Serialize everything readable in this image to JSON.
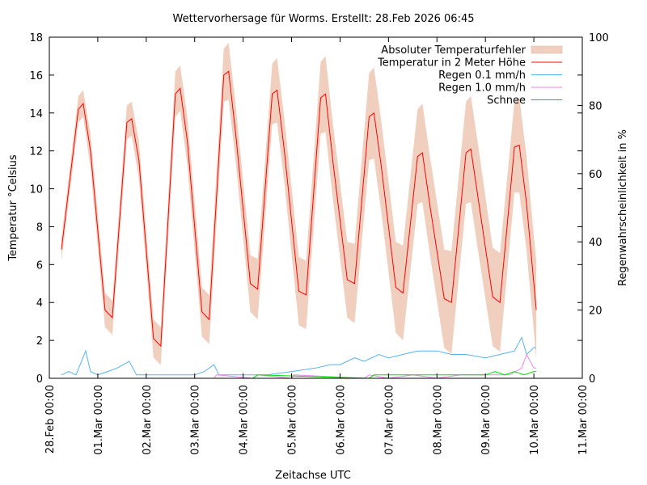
{
  "chart_data": {
    "type": "line",
    "title": "Wettervorhersage für Worms. Erstellt: 28.Feb 2026 06:45",
    "xlabel": "Zeitachse UTC",
    "ylabel": "Temperatur °Celsius",
    "y2label": "Regenwahrscheinlichkeit in %",
    "xlim_days": [
      0,
      11
    ],
    "ylim": [
      0,
      18
    ],
    "y2lim": [
      0,
      100
    ],
    "x_ticks": [
      "28.Feb 00:00",
      "01.Mar 00:00",
      "02.Mar 00:00",
      "03.Mar 00:00",
      "04.Mar 00:00",
      "05.Mar 00:00",
      "06.Mar 00:00",
      "07.Mar 00:00",
      "08.Mar 00:00",
      "09.Mar 00:00",
      "10.Mar 00:00",
      "11.Mar 00:00"
    ],
    "y_ticks": [
      "0",
      "2",
      "4",
      "6",
      "8",
      "10",
      "12",
      "14",
      "16",
      "18"
    ],
    "y2_ticks": [
      "0",
      "20",
      "40",
      "60",
      "80",
      "100"
    ],
    "legend_position": "top-right",
    "legend": [
      {
        "label": "Absoluter Temperaturfehler",
        "color": "#f0cfbf",
        "kind": "band"
      },
      {
        "label": "Temperatur in 2 Meter Höhe",
        "color": "#ff0000",
        "kind": "line"
      },
      {
        "label": "Regen 0.1 mm/h",
        "color": "#56b4e9",
        "kind": "line"
      },
      {
        "label": "Regen 1.0 mm/h",
        "color": "#ee82ee",
        "kind": "line"
      },
      {
        "label": "Schnee",
        "color": "#00dd00",
        "kind": "line"
      }
    ],
    "temperature_keypoints": {
      "x_days": [
        0.25,
        0.6,
        0.7,
        0.85,
        1.15,
        1.3,
        1.6,
        1.7,
        1.85,
        2.15,
        2.3,
        2.6,
        2.7,
        2.85,
        3.15,
        3.3,
        3.6,
        3.7,
        3.85,
        4.15,
        4.3,
        4.6,
        4.7,
        4.85,
        5.15,
        5.3,
        5.6,
        5.7,
        5.85,
        6.15,
        6.3,
        6.6,
        6.7,
        6.85,
        7.15,
        7.3,
        7.6,
        7.7,
        7.85,
        8.15,
        8.3,
        8.6,
        8.7,
        8.85,
        9.15,
        9.3,
        9.6,
        9.7,
        9.85,
        10.0,
        10.05
      ],
      "temp_c": [
        6.8,
        14.2,
        14.5,
        12.0,
        3.6,
        3.2,
        13.5,
        13.7,
        11.5,
        2.1,
        1.7,
        15.0,
        15.3,
        12.5,
        3.5,
        3.1,
        16.0,
        16.2,
        12.8,
        5.0,
        4.7,
        15.0,
        15.2,
        12.0,
        4.6,
        4.4,
        14.8,
        15.0,
        11.5,
        5.2,
        5.0,
        13.8,
        14.0,
        11.2,
        4.8,
        4.5,
        11.7,
        11.9,
        9.2,
        4.2,
        4.0,
        11.9,
        12.1,
        9.5,
        4.3,
        4.0,
        12.2,
        12.3,
        9.2,
        5.0,
        3.6
      ],
      "error_band_c": [
        0.6,
        0.7,
        0.7,
        0.9,
        0.9,
        0.9,
        0.9,
        0.9,
        1.0,
        1.0,
        1.0,
        1.2,
        1.2,
        1.3,
        1.3,
        1.3,
        1.4,
        1.5,
        1.5,
        1.5,
        1.6,
        1.6,
        1.7,
        1.7,
        1.8,
        1.8,
        1.9,
        2.0,
        2.0,
        2.0,
        2.1,
        2.3,
        2.4,
        2.4,
        2.4,
        2.5,
        2.5,
        2.6,
        2.6,
        2.6,
        2.7,
        2.7,
        2.8,
        2.8,
        2.6,
        2.6,
        2.4,
        2.5,
        2.5,
        2.5,
        2.6
      ]
    },
    "rain_0_1_keypoints": {
      "x_days": [
        0.25,
        0.4,
        0.55,
        0.75,
        0.85,
        1.0,
        1.2,
        1.4,
        1.65,
        1.8,
        2.0,
        2.5,
        3.0,
        3.2,
        3.4,
        3.5,
        4.0,
        4.5,
        5.0,
        5.5,
        5.8,
        6.0,
        6.3,
        6.5,
        6.8,
        7.0,
        7.3,
        7.6,
        8.0,
        8.3,
        8.6,
        9.0,
        9.3,
        9.6,
        9.75,
        9.85,
        10.0,
        10.05
      ],
      "percent": [
        1,
        2,
        1,
        8,
        2,
        1,
        2,
        3,
        5,
        1,
        1,
        1,
        1,
        2,
        4,
        1,
        1,
        1,
        2,
        3,
        4,
        4,
        6,
        5,
        7,
        6,
        7,
        8,
        8,
        7,
        7,
        6,
        7,
        8,
        12,
        7,
        9,
        9
      ]
    },
    "rain_1_0_keypoints": {
      "x_days": [
        0.25,
        3.4,
        3.45,
        4.2,
        4.3,
        5.0,
        5.05,
        6.5,
        6.6,
        7.0,
        7.5,
        8.0,
        8.5,
        9.0,
        9.5,
        9.75,
        9.85,
        10.0,
        10.05
      ],
      "percent": [
        0,
        0,
        1,
        0,
        1,
        0,
        1,
        0,
        1,
        0,
        1,
        0,
        1,
        1,
        1,
        3,
        7,
        3,
        3
      ]
    },
    "snow_keypoints": {
      "x_days": [
        0.25,
        4.2,
        4.3,
        6.6,
        6.7,
        6.9,
        7.1,
        7.5,
        8.0,
        8.5,
        9.0,
        9.2,
        9.4,
        9.6,
        9.8,
        10.0,
        10.05
      ],
      "percent": [
        0,
        0,
        1,
        0,
        1,
        1,
        1,
        1,
        1,
        1,
        1,
        2,
        1,
        2,
        1,
        2,
        2
      ]
    }
  }
}
